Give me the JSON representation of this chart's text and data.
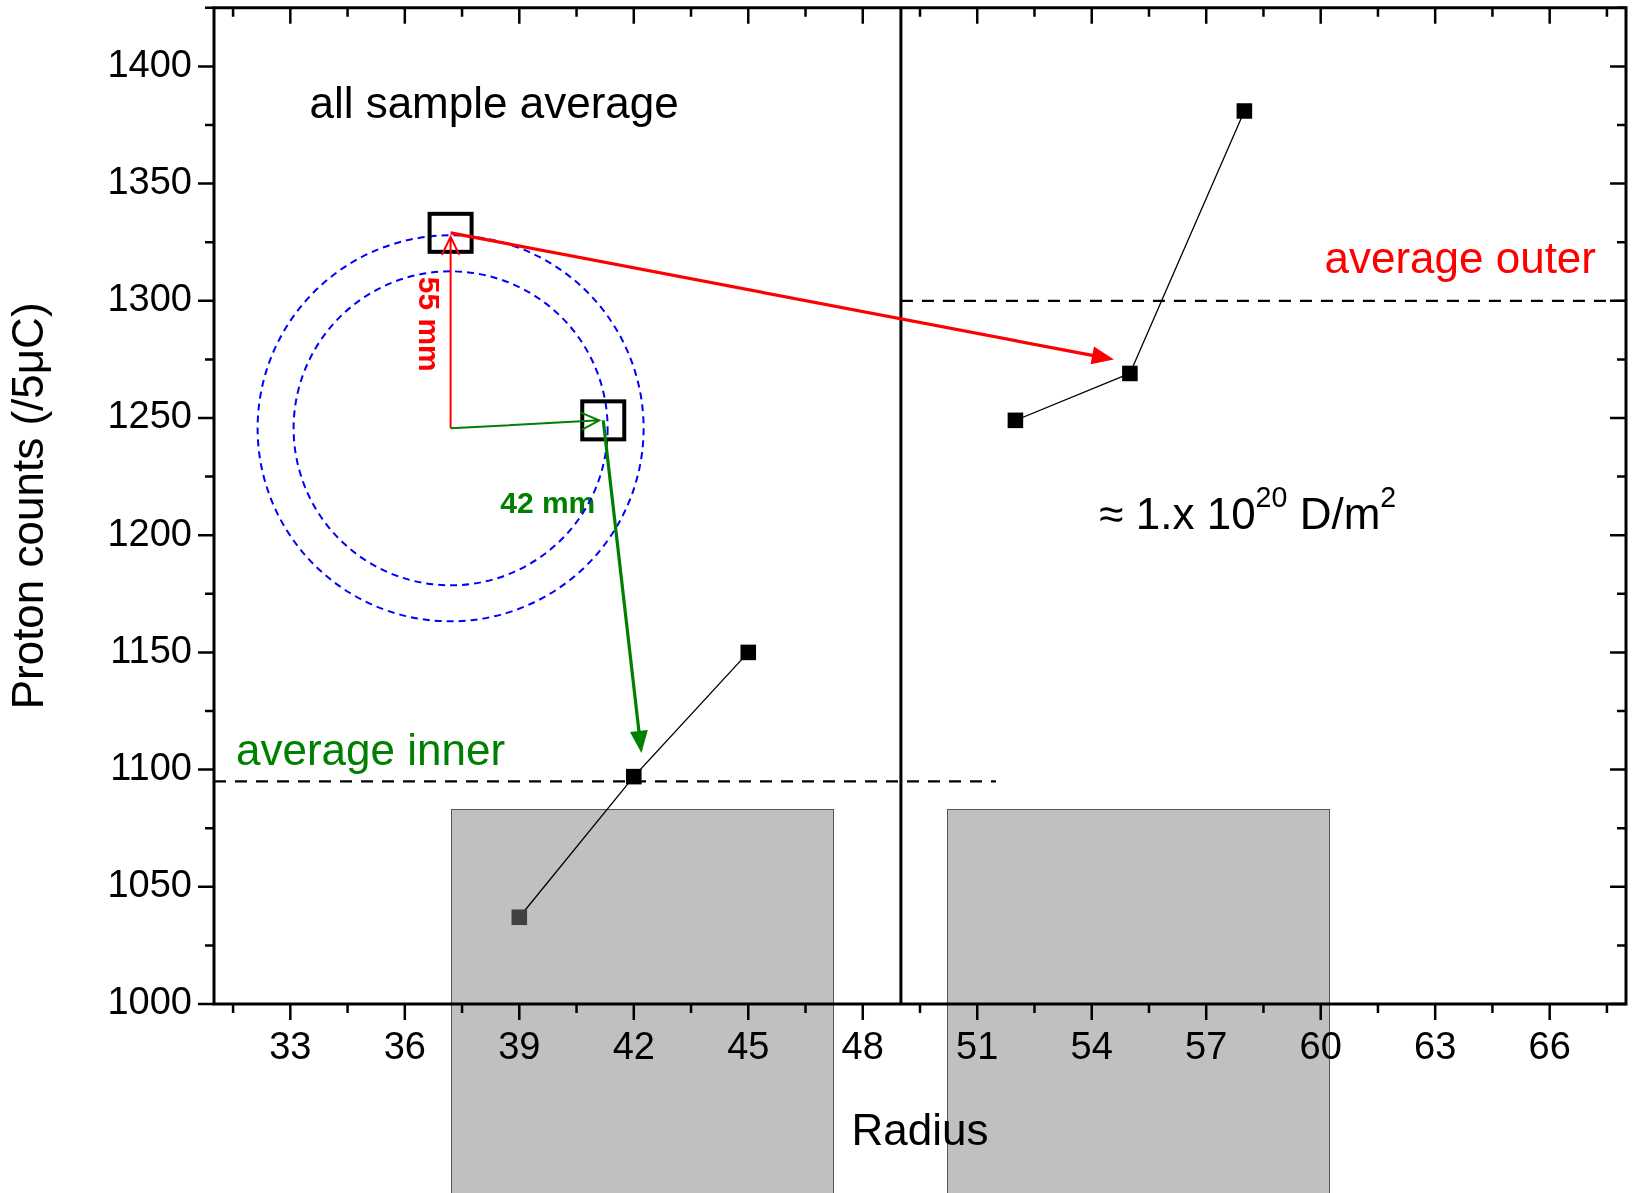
{
  "chart_data": {
    "type": "line",
    "xlabel": "Radius",
    "ylabel": "Proton counts (/5μC)",
    "xlim": [
      31,
      68
    ],
    "xticks": [
      33,
      36,
      39,
      42,
      45,
      48,
      51,
      54,
      57,
      60,
      63,
      66
    ],
    "ylim": [
      1000,
      1425
    ],
    "yticks": [
      1000,
      1050,
      1100,
      1150,
      1200,
      1250,
      1300,
      1350,
      1400
    ],
    "series": [
      {
        "x": [
          39,
          42,
          45
        ],
        "values": [
          1037,
          1097,
          1150
        ],
        "color": "#000000",
        "colors": [
          "#404040",
          "#000000",
          "#000000"
        ]
      },
      {
        "x": [
          52,
          55,
          58
        ],
        "values": [
          1249,
          1269,
          1381
        ],
        "color": "#000000"
      }
    ],
    "marker": "square",
    "line_style": "solid",
    "grid": false,
    "ref_lines": [
      {
        "axis": "x",
        "value": 49,
        "color": "#000000",
        "line_style": "solid"
      },
      {
        "axis": "y",
        "value": 1300,
        "label": "average outer",
        "color": "#000000",
        "line_style": "dashed"
      },
      {
        "axis": "y",
        "value": 1095,
        "label": "average inner",
        "color": "#000000",
        "line_style": "dashed"
      }
    ],
    "annotations": [
      "all sample average",
      "≈ 1.x 10$^{20}$ D/m$^{2}$",
      "55 mm",
      "42 mm"
    ]
  }
}
